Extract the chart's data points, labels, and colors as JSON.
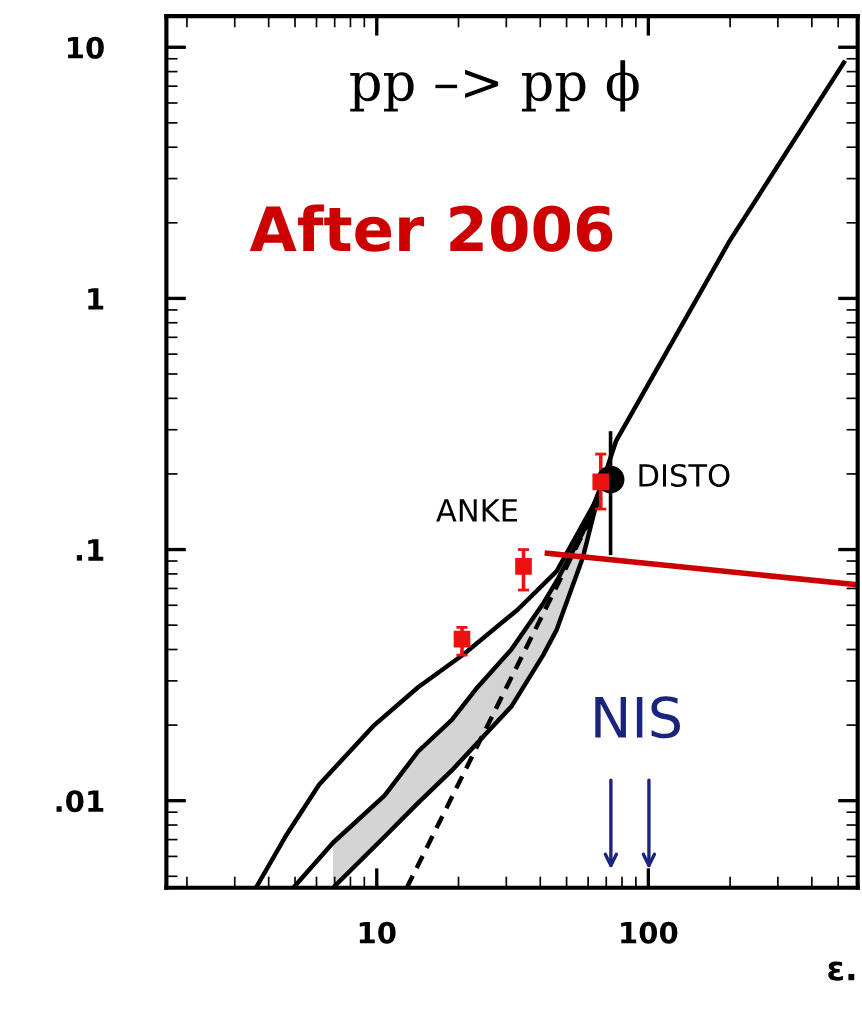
{
  "chart_data": {
    "type": "line",
    "xlabel": "ε.",
    "log": "xy",
    "xlim": [
      1.68,
      590
    ],
    "ylim": [
      0.0045,
      13.3
    ],
    "xticks": [
      10,
      100
    ],
    "yticks": [
      {
        "value": 0.01,
        "label": ".01"
      },
      {
        "value": 0.1,
        "label": ".1"
      },
      1,
      10
    ],
    "grid": false,
    "legend": false,
    "series": [
      {
        "color": "#000000",
        "x": [
          3.59,
          4.61,
          6.14,
          9.7,
          14.2,
          20.9,
          33,
          46,
          64.6,
          76,
          199,
          525
        ],
        "values": [
          0.0045,
          0.0072,
          0.0116,
          0.0198,
          0.0283,
          0.0383,
          0.0576,
          0.082,
          0.159,
          0.27,
          1.69,
          8.7
        ]
      },
      {
        "color": "#000000",
        "x": [
          4.93,
          6.9,
          10.7,
          14.2,
          18.9,
          23.5,
          31.3,
          41,
          46,
          57.4,
          66.7
        ],
        "values": [
          0.0045,
          0.0068,
          0.0105,
          0.0157,
          0.021,
          0.0283,
          0.04,
          0.061,
          0.075,
          0.117,
          0.177
        ],
        "lower": [
          null,
          0.0045,
          0.0072,
          0.0098,
          0.0132,
          0.017,
          0.0237,
          0.038,
          0.048,
          0.093,
          0.177
        ],
        "upper": [
          null,
          0.0068,
          0.0105,
          0.0157,
          0.021,
          0.0283,
          0.04,
          0.061,
          0.075,
          0.117,
          0.177
        ]
      },
      {
        "color": "#000000",
        "x": [
          6.9,
          10.7,
          14.2,
          18.9,
          23.5,
          31.3,
          41,
          46,
          57.4,
          66.7
        ],
        "values": [
          0.0045,
          0.0072,
          0.0098,
          0.0132,
          0.017,
          0.0237,
          0.038,
          0.048,
          0.093,
          0.177
        ]
      },
      {
        "color": "#000000",
        "line_style": "dashed",
        "x": [
          12.9,
          68
        ],
        "values": [
          0.0045,
          0.167
        ]
      },
      {
        "color": "#cc0000",
        "x": [
          42.5,
          574
        ],
        "values": [
          0.0966,
          0.0726
        ]
      },
      {
        "type": "scatter",
        "color": "#ee1111",
        "marker": "square",
        "x": [
          20.6,
          34.7,
          66.8
        ],
        "values": [
          0.044,
          0.0857,
          0.186
        ],
        "errors": [
          [
            0.038,
            0.049
          ],
          [
            0.069,
            0.1
          ],
          [
            0.145,
            0.24
          ]
        ]
      },
      {
        "type": "scatter",
        "color": "#000000",
        "marker": "circle",
        "x": [
          72.6
        ],
        "values": [
          0.19
        ],
        "errors": [
          [
            0.095,
            0.296
          ]
        ]
      }
    ],
    "annotations": [
      "pp –> pp ϕ",
      "After 2006",
      "ANKE",
      "DISTO",
      "NIS"
    ]
  }
}
